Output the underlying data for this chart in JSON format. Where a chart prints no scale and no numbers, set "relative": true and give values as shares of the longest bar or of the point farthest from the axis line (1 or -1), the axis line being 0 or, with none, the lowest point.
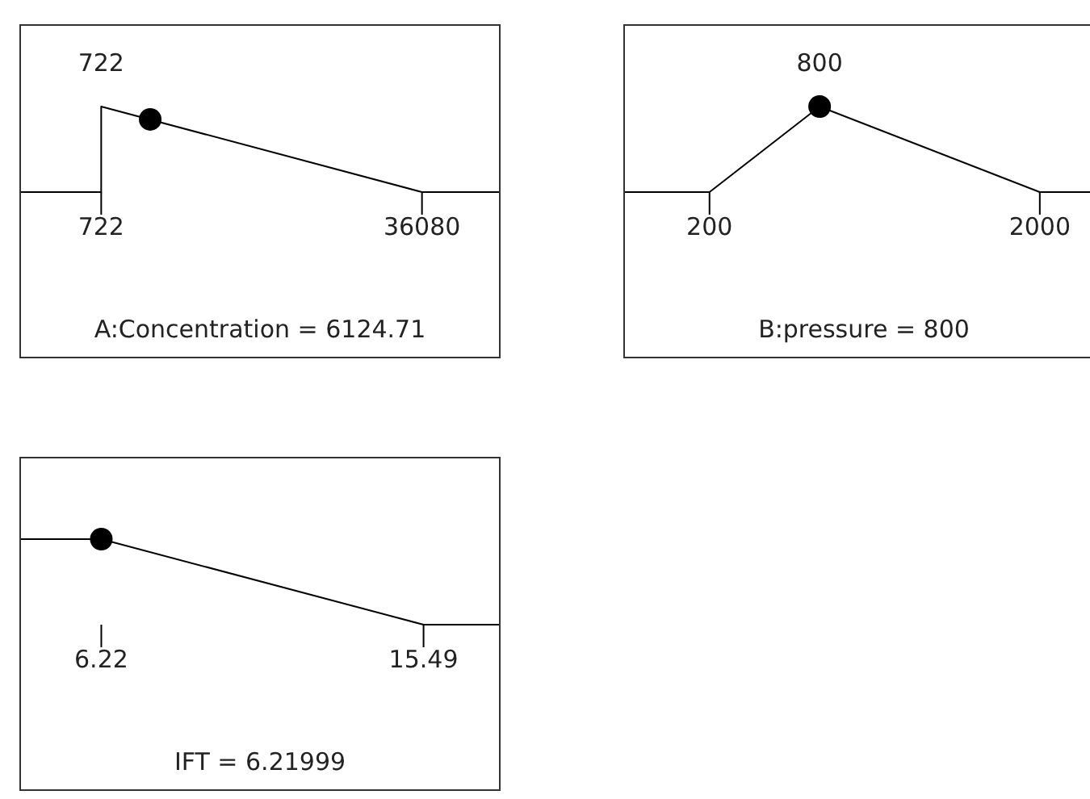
{
  "chart_data": [
    {
      "type": "line",
      "relative": true,
      "xlabel": "A:Concentration = 6124.71",
      "xlim": [
        -8118,
        44566
      ],
      "xticks": [
        722,
        36080
      ],
      "annotations": [
        {
          "text": "722",
          "x": 722,
          "y": 1
        }
      ],
      "series": [
        {
          "color": "#000000",
          "marker": "none",
          "x": [
            -8118,
            722,
            722,
            36080,
            44566
          ],
          "values": [
            0,
            0,
            1,
            0,
            0
          ]
        },
        {
          "type": "scatter",
          "color": "#000000",
          "marker": "circle",
          "x": [
            6124.71
          ],
          "values": [
            0.85
          ]
        }
      ]
    },
    {
      "type": "line",
      "relative": true,
      "xlabel": "B:pressure = 800",
      "xlim": [
        -261,
        2344
      ],
      "xticks": [
        200,
        2000
      ],
      "annotations": [
        {
          "text": "800",
          "x": 800,
          "y": 1
        }
      ],
      "series": [
        {
          "color": "#000000",
          "marker": "none",
          "x": [
            -261,
            200,
            800,
            2000,
            2344
          ],
          "values": [
            0,
            0,
            1,
            0,
            0
          ]
        },
        {
          "type": "scatter",
          "color": "#000000",
          "marker": "circle",
          "x": [
            800
          ],
          "values": [
            1
          ]
        }
      ]
    },
    {
      "type": "line",
      "relative": true,
      "xlabel": "IFT = 6.21999",
      "xlim": [
        3.91,
        17.66
      ],
      "xticks": [
        6.22,
        15.49
      ],
      "series": [
        {
          "color": "#000000",
          "marker": "none",
          "x": [
            3.91,
            6.22,
            15.49,
            17.66
          ],
          "values": [
            1,
            1,
            0,
            0
          ]
        },
        {
          "type": "scatter",
          "color": "#000000",
          "marker": "circle",
          "x": [
            6.21999
          ],
          "values": [
            1
          ]
        }
      ]
    }
  ]
}
